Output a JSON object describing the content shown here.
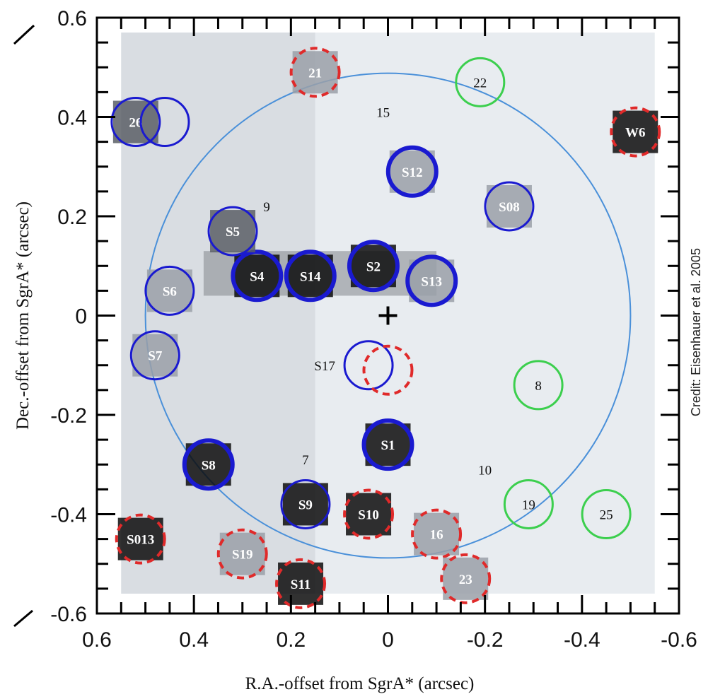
{
  "chart_data": {
    "type": "scatter",
    "title": "",
    "xlabel": "R.A.-offset from SgrA* (arcsec)",
    "ylabel": "Dec.-offset from SgrA* (arcsec)",
    "xlim": [
      0.6,
      -0.6
    ],
    "ylim": [
      -0.6,
      0.6
    ],
    "x_ticks": [
      0.6,
      0.4,
      0.2,
      0,
      -0.2,
      -0.4,
      -0.6
    ],
    "x_tick_labels": [
      "0.6",
      "0.4",
      "0.2",
      "0",
      "-0.2",
      "-0.4",
      "-0.6"
    ],
    "y_ticks": [
      0.6,
      0.4,
      0.2,
      0,
      -0.2,
      -0.4,
      -0.6
    ],
    "y_tick_labels": [
      "0.6",
      "0.4",
      "0.2",
      "0",
      "-0.2",
      "-0.4",
      "-0.6"
    ],
    "credit": "Credit: Eisenhauer et al. 2005",
    "center_marker": {
      "x": 0,
      "y": 0,
      "symbol": "+"
    },
    "reference_circle": {
      "x": 0,
      "y": 0,
      "radius": 0.5,
      "color": "#4a90d9"
    },
    "colors": {
      "blue": "#1a1ad0",
      "red": "#e02a2a",
      "green": "#3ccf4e",
      "background": "#e8ecf0"
    },
    "stars": [
      {
        "label": "S1",
        "x": 0.0,
        "y": -0.26,
        "circle": "blue-thick",
        "fill": "dark"
      },
      {
        "label": "S2",
        "x": 0.03,
        "y": 0.1,
        "circle": "blue-thick",
        "fill": "dark"
      },
      {
        "label": "S4",
        "x": 0.27,
        "y": 0.08,
        "circle": "blue-thick",
        "fill": "dark"
      },
      {
        "label": "S5",
        "x": 0.32,
        "y": 0.17,
        "circle": "blue",
        "fill": "medium"
      },
      {
        "label": "S6",
        "x": 0.45,
        "y": 0.05,
        "circle": "blue",
        "fill": "light"
      },
      {
        "label": "S7",
        "x": 0.48,
        "y": -0.08,
        "circle": "blue",
        "fill": "light"
      },
      {
        "label": "S8",
        "x": 0.37,
        "y": -0.3,
        "circle": "blue-thick",
        "fill": "dark"
      },
      {
        "label": "S9",
        "x": 0.17,
        "y": -0.38,
        "circle": "blue",
        "fill": "dark"
      },
      {
        "label": "S10",
        "x": 0.04,
        "y": -0.4,
        "circle": "red",
        "fill": "dark"
      },
      {
        "label": "S11",
        "x": 0.18,
        "y": -0.54,
        "circle": "red",
        "fill": "dark"
      },
      {
        "label": "S12",
        "x": -0.05,
        "y": 0.29,
        "circle": "blue-thick",
        "fill": "light"
      },
      {
        "label": "S13",
        "x": -0.09,
        "y": 0.07,
        "circle": "blue-thick",
        "fill": "light"
      },
      {
        "label": "S14",
        "x": 0.16,
        "y": 0.08,
        "circle": "blue-thick",
        "fill": "dark"
      },
      {
        "label": "S17",
        "x": 0.04,
        "y": -0.1,
        "circle": "blue",
        "fill": "none",
        "label_side": "left"
      },
      {
        "label": "S08",
        "x": -0.25,
        "y": 0.22,
        "circle": "blue",
        "fill": "light"
      },
      {
        "label": "S013",
        "x": 0.51,
        "y": -0.45,
        "circle": "red",
        "fill": "dark"
      },
      {
        "label": "S19",
        "x": 0.3,
        "y": -0.48,
        "circle": "red",
        "fill": "light"
      },
      {
        "label": "W6",
        "x": -0.51,
        "y": 0.37,
        "circle": "red",
        "fill": "dark"
      },
      {
        "label": "21",
        "x": 0.15,
        "y": 0.49,
        "circle": "red",
        "fill": "light"
      },
      {
        "label": "26",
        "x": 0.52,
        "y": 0.39,
        "circle": "blue",
        "fill": "medium"
      },
      {
        "label": "22",
        "x": -0.19,
        "y": 0.47,
        "circle": "green",
        "fill": "none"
      },
      {
        "label": "8",
        "x": -0.31,
        "y": -0.14,
        "circle": "green",
        "fill": "none"
      },
      {
        "label": "19",
        "x": -0.29,
        "y": -0.38,
        "circle": "green",
        "fill": "none"
      },
      {
        "label": "25",
        "x": -0.45,
        "y": -0.4,
        "circle": "green",
        "fill": "none"
      },
      {
        "label": "16",
        "x": -0.1,
        "y": -0.44,
        "circle": "red",
        "fill": "light"
      },
      {
        "label": "23",
        "x": -0.16,
        "y": -0.53,
        "circle": "red",
        "fill": "light"
      },
      {
        "label": "15",
        "x": 0.01,
        "y": 0.41,
        "circle": "none",
        "fill": "none"
      },
      {
        "label": "9",
        "x": 0.25,
        "y": 0.22,
        "circle": "none",
        "fill": "none"
      },
      {
        "label": "7",
        "x": 0.17,
        "y": -0.29,
        "circle": "none",
        "fill": "none"
      },
      {
        "label": "10",
        "x": -0.2,
        "y": -0.31,
        "circle": "none",
        "fill": "none"
      }
    ],
    "extra_circles": [
      {
        "x": 0.46,
        "y": 0.39,
        "color": "blue"
      },
      {
        "x": 0.0,
        "y": -0.11,
        "color": "red"
      }
    ]
  }
}
